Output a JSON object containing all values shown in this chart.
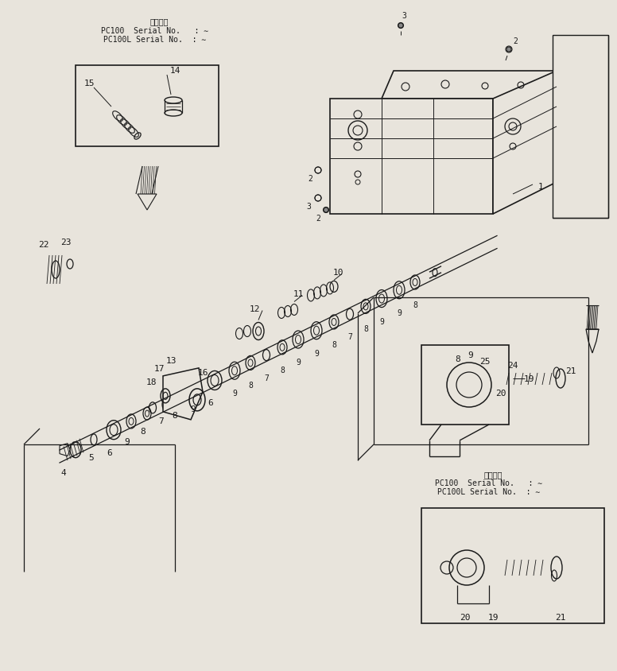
{
  "bg_color": "#e8e4dc",
  "lc": "#1a1a1a",
  "fig_w": 7.76,
  "fig_h": 8.45,
  "dpi": 100,
  "tl1": "通用号機",
  "tl2": "PC100  Serial No.   : ∼",
  "tl3": "PC100L Serial No.  : ∼",
  "ml1": "通用号機",
  "ml2": "PC100  Serial No.   : ∼",
  "ml3": "PC100L Serial No.  : ∼"
}
